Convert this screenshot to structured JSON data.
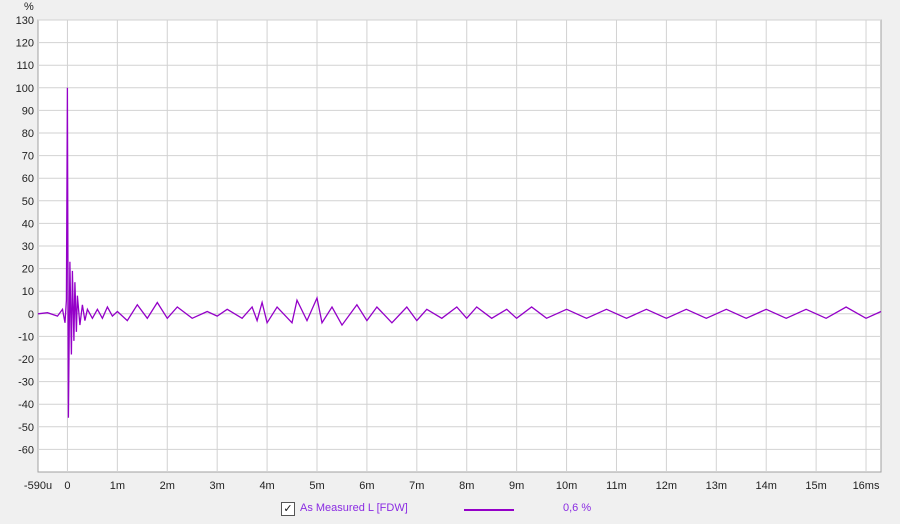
{
  "chart_data": {
    "type": "line",
    "ylabel": "%",
    "ylim": [
      -70,
      130
    ],
    "y_ticks": [
      "130",
      "120",
      "110",
      "100",
      "90",
      "80",
      "70",
      "60",
      "50",
      "40",
      "30",
      "20",
      "10",
      "0",
      "-10",
      "-20",
      "-30",
      "-40",
      "-50",
      "-60"
    ],
    "x_ticks": [
      "-590u",
      "0",
      "1m",
      "2m",
      "3m",
      "4m",
      "5m",
      "6m",
      "7m",
      "8m",
      "9m",
      "10m",
      "11m",
      "12m",
      "13m",
      "14m",
      "15m",
      "16ms"
    ],
    "xlim_ms": [
      -0.59,
      16.3
    ],
    "grid": true,
    "line_color": "#9400c8",
    "series": [
      {
        "name": "As Measured L [FDW]",
        "x": [
          -0.59,
          -0.4,
          -0.2,
          -0.1,
          -0.05,
          -0.02,
          0,
          0.02,
          0.05,
          0.08,
          0.1,
          0.13,
          0.15,
          0.18,
          0.2,
          0.25,
          0.3,
          0.35,
          0.4,
          0.5,
          0.6,
          0.7,
          0.8,
          0.9,
          1.0,
          1.2,
          1.4,
          1.6,
          1.8,
          2.0,
          2.2,
          2.5,
          2.8,
          3.0,
          3.2,
          3.5,
          3.7,
          3.8,
          3.9,
          4.0,
          4.2,
          4.5,
          4.6,
          4.8,
          5.0,
          5.1,
          5.3,
          5.5,
          5.8,
          6.0,
          6.2,
          6.5,
          6.8,
          7.0,
          7.2,
          7.5,
          7.8,
          8.0,
          8.2,
          8.5,
          8.8,
          9.0,
          9.3,
          9.6,
          10.0,
          10.4,
          10.8,
          11.2,
          11.6,
          12.0,
          12.4,
          12.8,
          13.2,
          13.6,
          14.0,
          14.4,
          14.8,
          15.2,
          15.6,
          16.0,
          16.3
        ],
        "y": [
          0,
          0.5,
          -1,
          2,
          -4,
          6,
          100,
          -46,
          23,
          -18,
          19,
          -12,
          14,
          -8,
          8,
          -5,
          4,
          -3,
          2,
          -2,
          2,
          -2,
          3,
          -1,
          1,
          -3,
          4,
          -2,
          5,
          -2,
          3,
          -2,
          1,
          -1,
          2,
          -2,
          3,
          -3,
          5,
          -4,
          3,
          -4,
          6,
          -3,
          7,
          -4,
          3,
          -5,
          4,
          -3,
          3,
          -4,
          3,
          -3,
          2,
          -2,
          3,
          -2,
          3,
          -2,
          2,
          -2,
          3,
          -2,
          2,
          -2,
          2,
          -2,
          2,
          -2,
          2,
          -2,
          2,
          -2,
          2,
          -2,
          2,
          -2,
          3,
          -2,
          1
        ]
      }
    ]
  },
  "legend": {
    "checkbox": "✓",
    "label": "As Measured L [FDW]",
    "value": "0,6 %"
  }
}
